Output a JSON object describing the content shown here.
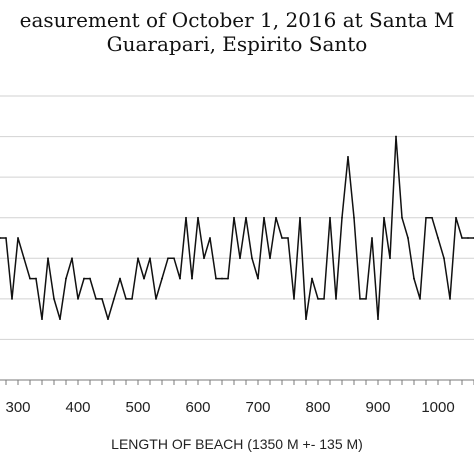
{
  "chart_data": {
    "type": "line",
    "title_line1": "easurement of October 1, 2016 at Santa M",
    "title_line2": "Guarapari, Espirito Santo",
    "xlabel": "LENGTH OF BEACH (1350 M +- 135 M)",
    "ylabel": "",
    "x_ticks": [
      "300",
      "400",
      "500",
      "600",
      "700",
      "800",
      "900",
      "1000"
    ],
    "x_tick_values": [
      300,
      400,
      500,
      600,
      700,
      800,
      900,
      1000
    ],
    "xlim": [
      270,
      1060
    ],
    "ylim": [
      0,
      14
    ],
    "y_grid": [
      2,
      4,
      6,
      8,
      10,
      12,
      14
    ],
    "grid": true,
    "series": [
      {
        "x": [
          270,
          280,
          290,
          300,
          310,
          320,
          330,
          340,
          350,
          360,
          370,
          380,
          390,
          400,
          410,
          420,
          430,
          440,
          450,
          460,
          470,
          480,
          490,
          500,
          510,
          520,
          530,
          540,
          550,
          560,
          570,
          580,
          590,
          600,
          610,
          620,
          630,
          640,
          650,
          660,
          670,
          680,
          690,
          700,
          710,
          720,
          730,
          740,
          750,
          760,
          770,
          780,
          790,
          800,
          810,
          820,
          830,
          840,
          850,
          860,
          870,
          880,
          890,
          900,
          910,
          920,
          930,
          940,
          950,
          960,
          970,
          980,
          990,
          1000,
          1010,
          1020,
          1030,
          1040,
          1050,
          1060
        ],
        "y": [
          7,
          7,
          4,
          7,
          6,
          5,
          5,
          3,
          6,
          4,
          3,
          5,
          6,
          4,
          5,
          5,
          4,
          4,
          3,
          4,
          5,
          4,
          4,
          6,
          5,
          6,
          4,
          5,
          6,
          6,
          5,
          8,
          5,
          8,
          6,
          7,
          5,
          5,
          5,
          8,
          6,
          8,
          6,
          5,
          8,
          6,
          8,
          7,
          7,
          4,
          8,
          3,
          5,
          4,
          4,
          8,
          4,
          8,
          11,
          8,
          4,
          4,
          7,
          3,
          8,
          6,
          12,
          8,
          7,
          5,
          4,
          8,
          8,
          7,
          6,
          4,
          8,
          7,
          7,
          7
        ]
      }
    ]
  }
}
